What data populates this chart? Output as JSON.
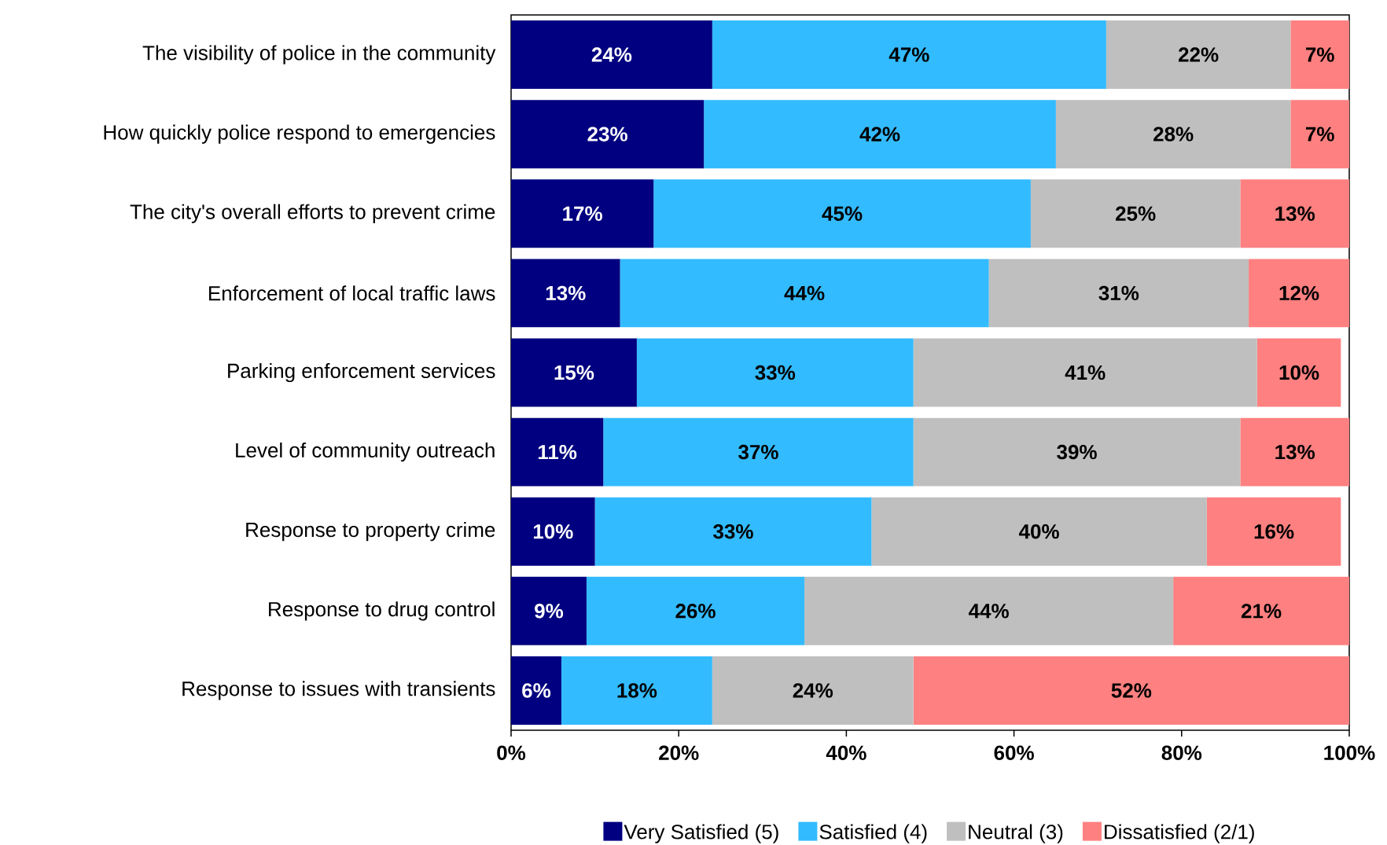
{
  "chart_data": {
    "type": "bar",
    "orientation": "horizontal",
    "stacked": true,
    "legend": "bottom",
    "grid": false,
    "categories": [
      "The visibility of police in the community",
      "How quickly police respond to emergencies",
      "The city's overall efforts to prevent crime",
      "Enforcement of local traffic laws",
      "Parking enforcement services",
      "Level of community outreach",
      "Response to property crime",
      "Response to drug control",
      "Response to issues with transients"
    ],
    "xlim": [
      0,
      100
    ],
    "xticks": [
      {
        "value": 0,
        "label": "0%"
      },
      {
        "value": 20,
        "label": "20%"
      },
      {
        "value": 40,
        "label": "40%"
      },
      {
        "value": 60,
        "label": "60%"
      },
      {
        "value": 80,
        "label": "80%"
      },
      {
        "value": 100,
        "label": "100%"
      }
    ],
    "series": [
      {
        "name": "Very Satisfied (5)",
        "color": "#000080",
        "values": [
          24,
          23,
          17,
          13,
          15,
          11,
          10,
          9,
          6
        ],
        "value_labels": [
          "24%",
          "23%",
          "17%",
          "13%",
          "15%",
          "11%",
          "10%",
          "9%",
          "6%"
        ]
      },
      {
        "name": "Satisfied (4)",
        "color": "#33bbff",
        "values": [
          47,
          42,
          45,
          44,
          33,
          37,
          33,
          26,
          18
        ],
        "value_labels": [
          "47%",
          "42%",
          "45%",
          "44%",
          "33%",
          "37%",
          "33%",
          "26%",
          "18%"
        ]
      },
      {
        "name": "Neutral (3)",
        "color": "#bfbfbf",
        "values": [
          22,
          28,
          25,
          31,
          41,
          39,
          40,
          44,
          24
        ],
        "value_labels": [
          "22%",
          "28%",
          "25%",
          "31%",
          "41%",
          "39%",
          "40%",
          "44%",
          "24%"
        ]
      },
      {
        "name": "Dissatisfied (2/1)",
        "color": "#ff8080",
        "values": [
          7,
          7,
          13,
          12,
          10,
          13,
          16,
          21,
          52
        ],
        "value_labels": [
          "7%",
          "7%",
          "13%",
          "12%",
          "10%",
          "13%",
          "16%",
          "21%",
          "52%"
        ]
      }
    ]
  }
}
